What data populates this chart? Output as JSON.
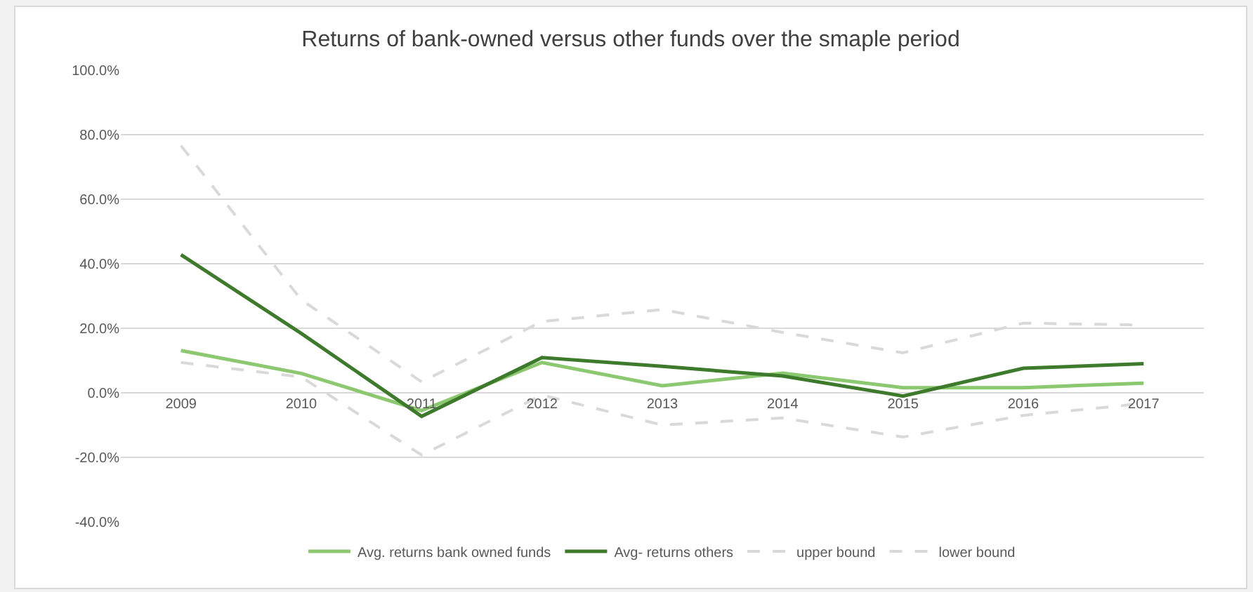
{
  "chart_data": {
    "type": "line",
    "title": "Returns of bank-owned versus other funds over the smaple period",
    "categories": [
      "2009",
      "2010",
      "2011",
      "2012",
      "2013",
      "2014",
      "2015",
      "2016",
      "2017"
    ],
    "series": [
      {
        "name": "Avg. returns bank owned funds",
        "color": "#8cc870",
        "values": [
          13.1,
          6.0,
          -5.5,
          9.4,
          2.2,
          6.1,
          1.6,
          1.6,
          3.0
        ]
      },
      {
        "name": "Avg- returns others",
        "color": "#3e7a2c",
        "values": [
          42.8,
          18.4,
          -7.3,
          10.9,
          8.2,
          5.2,
          -1.0,
          7.6,
          9.0
        ]
      },
      {
        "name": "upper bound",
        "color": "#d9d9d9",
        "line_style": "dashed",
        "values": [
          76.6,
          28.8,
          3.4,
          22.1,
          25.8,
          18.7,
          12.4,
          21.6,
          21.0
        ]
      },
      {
        "name": "lower bound",
        "color": "#d9d9d9",
        "line_style": "dashed",
        "values": [
          9.4,
          4.9,
          -19.3,
          -0.7,
          -10.0,
          -7.8,
          -13.7,
          -7.0,
          -3.3
        ]
      }
    ],
    "ylim": [
      -40,
      100
    ],
    "yticks": [
      {
        "value": -40,
        "label": "-40.0%"
      },
      {
        "value": -20,
        "label": "-20.0%"
      },
      {
        "value": 0,
        "label": "0.0%"
      },
      {
        "value": 20,
        "label": "20.0%"
      },
      {
        "value": 40,
        "label": "40.0%"
      },
      {
        "value": 60,
        "label": "60.0%"
      },
      {
        "value": 80,
        "label": "80.0%"
      },
      {
        "value": 100,
        "label": "100.0%"
      }
    ],
    "grid": "y",
    "legend": "bottom",
    "line_style": "solid",
    "marker": "none"
  }
}
